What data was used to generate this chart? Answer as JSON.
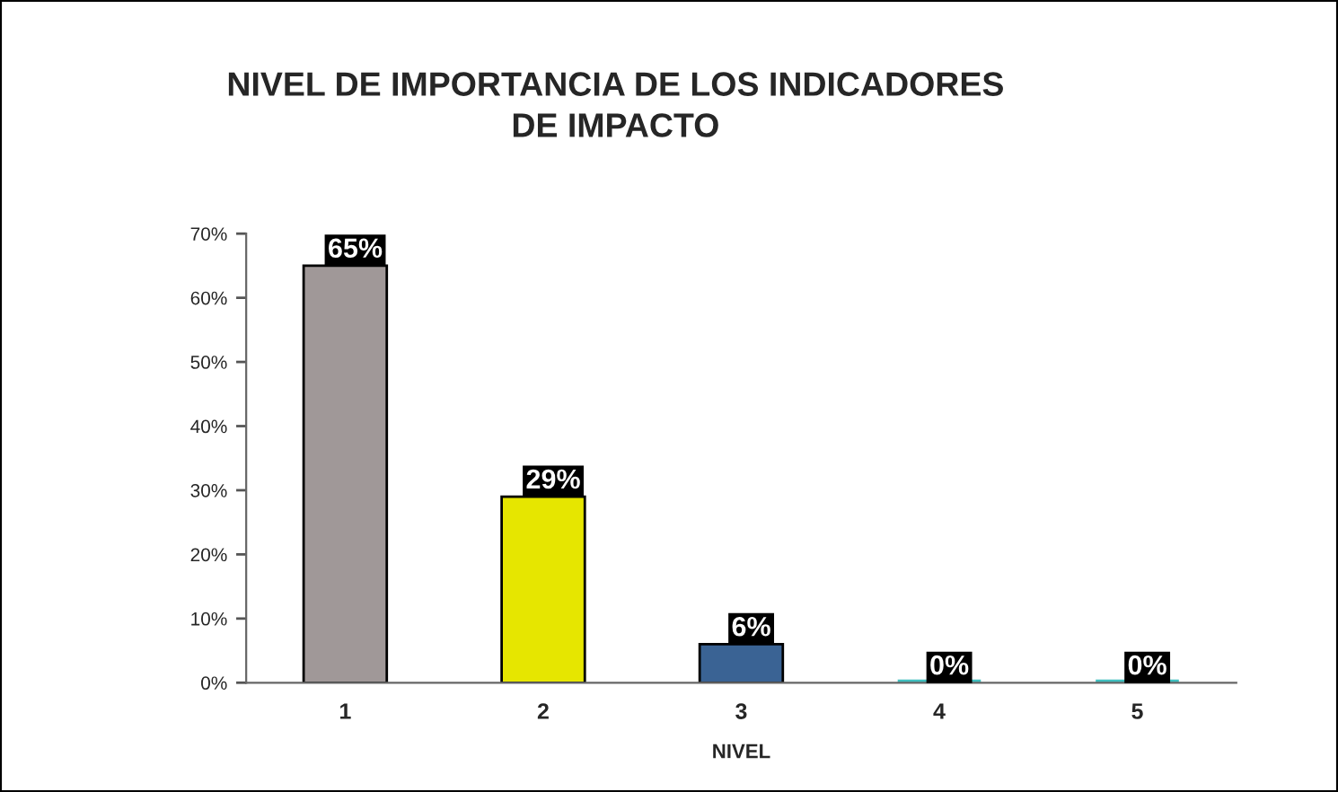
{
  "chart_data": {
    "type": "bar",
    "title": "NIVEL DE IMPORTANCIA DE LOS INDICADORES\nDE IMPACTO",
    "xlabel": "NIVEL",
    "categories": [
      "1",
      "2",
      "3",
      "4",
      "5"
    ],
    "values": [
      65,
      29,
      6,
      0,
      0
    ],
    "colors": [
      "#a09898",
      "#e6e600",
      "#3a6394",
      "#40c0c0",
      "#40c0c0"
    ],
    "value_labels": [
      "65%",
      "29%",
      "6%",
      "0%",
      "0%"
    ],
    "ylim": [
      0,
      70
    ],
    "yticks": [
      {
        "value": 0,
        "label": "0%"
      },
      {
        "value": 10,
        "label": "10%"
      },
      {
        "value": 20,
        "label": "20%"
      },
      {
        "value": 30,
        "label": "30%"
      },
      {
        "value": 40,
        "label": "40%"
      },
      {
        "value": 50,
        "label": "50%"
      },
      {
        "value": 60,
        "label": "60%"
      },
      {
        "value": 70,
        "label": "70%"
      }
    ]
  }
}
